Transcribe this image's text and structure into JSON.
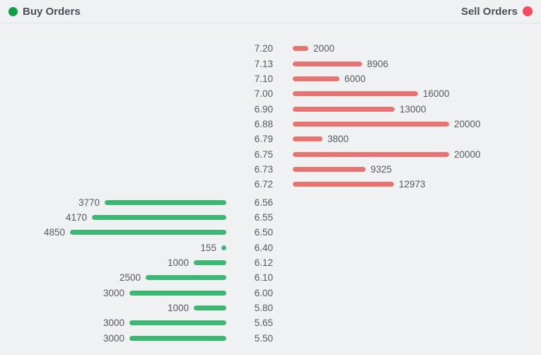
{
  "legend": {
    "buy_label": "Buy Orders",
    "sell_label": "Sell Orders"
  },
  "colors": {
    "buy_dot": "#0fa04a",
    "sell_dot": "#fb4a5f",
    "buy_bar": "#3bb874",
    "sell_bar": "#e87373",
    "background": "#f0f1f3",
    "text": "#56595e"
  },
  "chart_data": {
    "type": "bar",
    "orientation": "horizontal",
    "title": "",
    "xlabel": "",
    "ylabel": "",
    "legend_position": "top",
    "grid": false,
    "sell_axis_max": 20000,
    "buy_axis_max": 4850,
    "sell_orders": [
      {
        "price": "7.20",
        "quantity": 2000
      },
      {
        "price": "7.13",
        "quantity": 8906
      },
      {
        "price": "7.10",
        "quantity": 6000
      },
      {
        "price": "7.00",
        "quantity": 16000
      },
      {
        "price": "6.90",
        "quantity": 13000
      },
      {
        "price": "6.88",
        "quantity": 20000
      },
      {
        "price": "6.79",
        "quantity": 3800
      },
      {
        "price": "6.75",
        "quantity": 20000
      },
      {
        "price": "6.73",
        "quantity": 9325
      },
      {
        "price": "6.72",
        "quantity": 12973
      }
    ],
    "buy_orders": [
      {
        "price": "6.56",
        "quantity": 3770
      },
      {
        "price": "6.55",
        "quantity": 4170
      },
      {
        "price": "6.50",
        "quantity": 4850
      },
      {
        "price": "6.40",
        "quantity": 155
      },
      {
        "price": "6.12",
        "quantity": 1000
      },
      {
        "price": "6.10",
        "quantity": 2500
      },
      {
        "price": "6.00",
        "quantity": 3000
      },
      {
        "price": "5.80",
        "quantity": 1000
      },
      {
        "price": "5.65",
        "quantity": 3000
      },
      {
        "price": "5.50",
        "quantity": 3000
      }
    ]
  }
}
